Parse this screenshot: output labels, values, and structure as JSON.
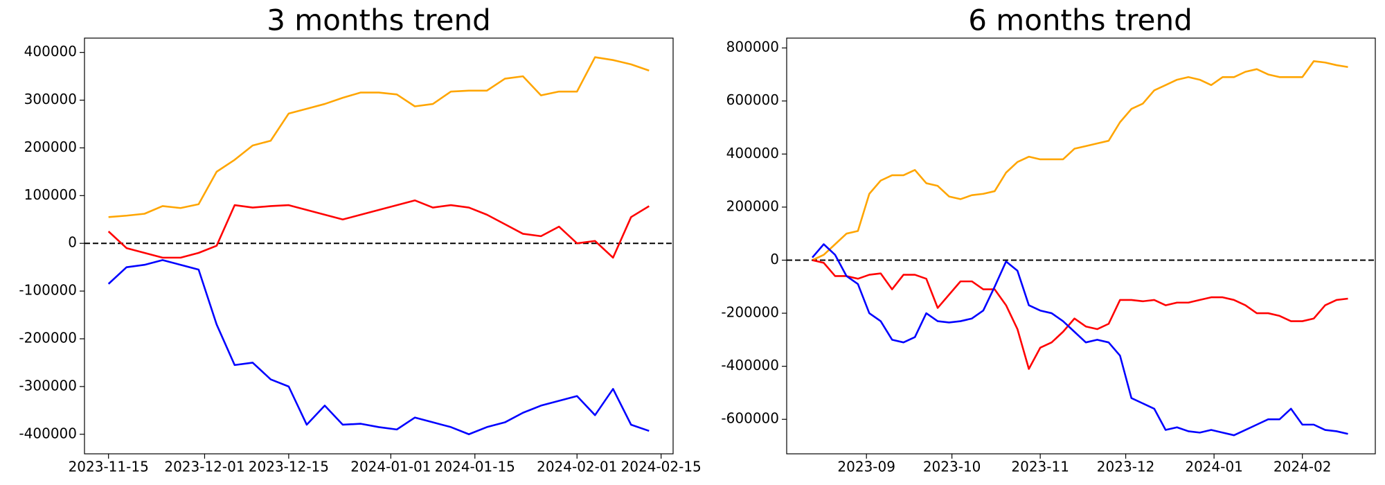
{
  "chart_data": [
    {
      "type": "line",
      "title": "3 months trend",
      "x": [
        "2023-11-15",
        "2023-11-18",
        "2023-11-21",
        "2023-11-24",
        "2023-11-27",
        "2023-11-30",
        "2023-12-03",
        "2023-12-06",
        "2023-12-09",
        "2023-12-12",
        "2023-12-15",
        "2023-12-18",
        "2023-12-21",
        "2023-12-24",
        "2023-12-27",
        "2023-12-30",
        "2024-01-02",
        "2024-01-05",
        "2024-01-08",
        "2024-01-11",
        "2024-01-14",
        "2024-01-17",
        "2024-01-20",
        "2024-01-23",
        "2024-01-26",
        "2024-01-29",
        "2024-02-01",
        "2024-02-04",
        "2024-02-07",
        "2024-02-10",
        "2024-02-13"
      ],
      "series": [
        {
          "color": "#ffa500",
          "values": [
            55000,
            58000,
            62000,
            78000,
            74000,
            82000,
            150000,
            175000,
            205000,
            215000,
            272000,
            282000,
            292000,
            305000,
            316000,
            316000,
            312000,
            287000,
            292000,
            318000,
            320000,
            320000,
            345000,
            350000,
            310000,
            318000,
            318000,
            390000,
            384000,
            375000,
            362000
          ]
        },
        {
          "color": "#ff0000",
          "values": [
            25000,
            -10000,
            -20000,
            -30000,
            -30000,
            -20000,
            -5000,
            80000,
            75000,
            78000,
            80000,
            70000,
            60000,
            50000,
            60000,
            70000,
            80000,
            90000,
            75000,
            80000,
            75000,
            60000,
            40000,
            20000,
            15000,
            35000,
            0,
            5000,
            -30000,
            55000,
            78000
          ]
        },
        {
          "color": "#0000ff",
          "values": [
            -85000,
            -50000,
            -45000,
            -35000,
            -45000,
            -55000,
            -170000,
            -255000,
            -250000,
            -285000,
            -300000,
            -380000,
            -340000,
            -380000,
            -378000,
            -385000,
            -390000,
            -365000,
            -375000,
            -385000,
            -400000,
            -385000,
            -375000,
            -355000,
            -340000,
            -330000,
            -320000,
            -360000,
            -305000,
            -380000,
            -393000
          ]
        }
      ],
      "xlim": [
        "2023-11-11",
        "2024-02-17"
      ],
      "xticks": [
        "2023-11-15",
        "2023-12-01",
        "2023-12-15",
        "2024-01-01",
        "2024-01-15",
        "2024-02-01",
        "2024-02-15"
      ],
      "ylim": [
        -441000,
        430000
      ],
      "yticks": [
        -400000,
        -300000,
        -200000,
        -100000,
        0,
        100000,
        200000,
        300000,
        400000
      ],
      "hline": 0
    },
    {
      "type": "line",
      "title": "6 months trend",
      "series": [
        {
          "color": "#ffa500",
          "values": [
            0,
            20000,
            60000,
            100000,
            110000,
            250000,
            300000,
            320000,
            320000,
            340000,
            290000,
            280000,
            240000,
            230000,
            245000,
            250000,
            260000,
            330000,
            370000,
            390000,
            380000,
            380000,
            380000,
            420000,
            430000,
            440000,
            450000,
            520000,
            570000,
            590000,
            640000,
            660000,
            680000,
            690000,
            680000,
            660000,
            690000,
            690000,
            710000,
            720000,
            700000,
            690000,
            690000,
            690000,
            750000,
            745000,
            735000,
            728000
          ]
        },
        {
          "color": "#ff0000",
          "values": [
            0,
            -10000,
            -60000,
            -60000,
            -70000,
            -55000,
            -50000,
            -110000,
            -55000,
            -55000,
            -70000,
            -180000,
            -130000,
            -80000,
            -80000,
            -110000,
            -110000,
            -170000,
            -260000,
            -410000,
            -330000,
            -310000,
            -270000,
            -220000,
            -250000,
            -260000,
            -240000,
            -150000,
            -150000,
            -155000,
            -150000,
            -170000,
            -160000,
            -160000,
            -150000,
            -140000,
            -140000,
            -150000,
            -170000,
            -200000,
            -200000,
            -210000,
            -230000,
            -230000,
            -220000,
            -170000,
            -150000,
            -145000
          ]
        },
        {
          "color": "#0000ff",
          "values": [
            10000,
            60000,
            20000,
            -60000,
            -90000,
            -200000,
            -230000,
            -300000,
            -310000,
            -290000,
            -200000,
            -230000,
            -235000,
            -230000,
            -220000,
            -190000,
            -100000,
            -5000,
            -40000,
            -170000,
            -190000,
            -200000,
            -230000,
            -270000,
            -310000,
            -300000,
            -310000,
            -360000,
            -520000,
            -540000,
            -560000,
            -640000,
            -630000,
            -645000,
            -650000,
            -640000,
            -650000,
            -660000,
            -640000,
            -620000,
            -600000,
            -600000,
            -560000,
            -620000,
            -620000,
            -640000,
            -645000,
            -655000
          ]
        }
      ],
      "xlim": [
        -2.25,
        49.4
      ],
      "xticks": [
        {
          "value": 4.75,
          "label": "2023-09"
        },
        {
          "value": 12.25,
          "label": "2023-10"
        },
        {
          "value": 20,
          "label": "2023-11"
        },
        {
          "value": 27.5,
          "label": "2023-12"
        },
        {
          "value": 35.25,
          "label": "2024-01"
        },
        {
          "value": 43,
          "label": "2024-02"
        }
      ],
      "ylim": [
        -730000,
        837000
      ],
      "yticks": [
        -600000,
        -400000,
        -200000,
        0,
        200000,
        400000,
        600000,
        800000
      ],
      "hline": 0
    }
  ]
}
